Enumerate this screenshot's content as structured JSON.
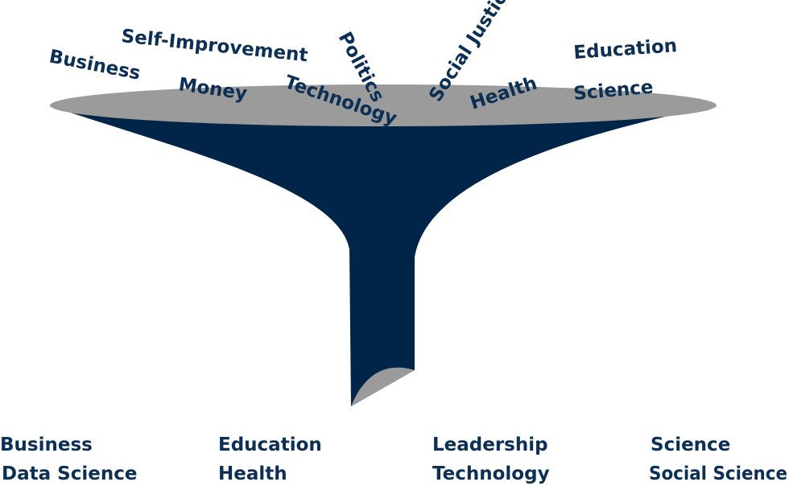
{
  "diagram": {
    "colors": {
      "funnel": "#002548",
      "rim": "#9b9b9b",
      "text": "#0c2f55",
      "background": "#ffffff"
    },
    "input_topics": {
      "business": "Business",
      "self_improvement": "Self-Improvement",
      "politics": "Politics",
      "social_justice": "Social Justice",
      "education": "Education",
      "money": "Money",
      "technology": "Technology",
      "health": "Health",
      "science": "Science"
    },
    "output_topics": {
      "col1": [
        "Business",
        "Data Science"
      ],
      "col2": [
        "Education",
        "Health"
      ],
      "col3": [
        "Leadership",
        "Technology"
      ],
      "col4": [
        "Science",
        "Social Science"
      ]
    }
  }
}
